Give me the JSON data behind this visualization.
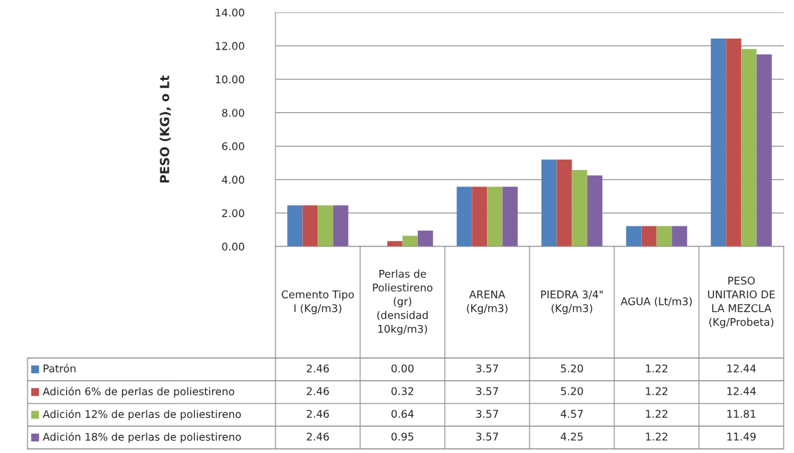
{
  "chart_data": {
    "type": "bar",
    "ylabel": "PESO (KG), o Lt",
    "categories": [
      "Cemento Tipo I (Kg/m3)",
      "Perlas de Poliestireno (gr) (densidad 10kg/m3)",
      "ARENA (Kg/m3)",
      "PIEDRA 3/4\" (Kg/m3)",
      "AGUA (Lt/m3)",
      "PESO UNITARIO DE LA MEZCLA (Kg/Probeta)"
    ],
    "series": [
      {
        "name": "Patrón",
        "color": "#4f81bd",
        "values": [
          2.46,
          0.0,
          3.57,
          5.2,
          1.22,
          12.44
        ],
        "value_labels": [
          "2.46",
          "0.00",
          "3.57",
          "5.20",
          "1.22",
          "12.44"
        ]
      },
      {
        "name": "Adición 6% de perlas de poliestireno",
        "color": "#c0504d",
        "values": [
          2.46,
          0.32,
          3.57,
          5.2,
          1.22,
          12.44
        ],
        "value_labels": [
          "2.46",
          "0.32",
          "3.57",
          "5.20",
          "1.22",
          "12.44"
        ]
      },
      {
        "name": "Adición 12% de perlas de poliestireno",
        "color": "#9bbb59",
        "values": [
          2.46,
          0.64,
          3.57,
          4.57,
          1.22,
          11.81
        ],
        "value_labels": [
          "2.46",
          "0.64",
          "3.57",
          "4.57",
          "1.22",
          "11.81"
        ]
      },
      {
        "name": "Adición 18% de perlas de poliestireno",
        "color": "#8064a2",
        "values": [
          2.46,
          0.95,
          3.57,
          4.25,
          1.22,
          11.49
        ],
        "value_labels": [
          "2.46",
          "0.95",
          "3.57",
          "4.25",
          "1.22",
          "11.49"
        ]
      }
    ],
    "ylim": [
      0,
      14
    ],
    "yticks": [
      {
        "value": 0,
        "label": "0.00"
      },
      {
        "value": 2,
        "label": "2.00"
      },
      {
        "value": 4,
        "label": "4.00"
      },
      {
        "value": 6,
        "label": "6.00"
      },
      {
        "value": 8,
        "label": "8.00"
      },
      {
        "value": 10,
        "label": "10.00"
      },
      {
        "value": 12,
        "label": "12.00"
      },
      {
        "value": 14,
        "label": "14.00"
      }
    ],
    "grid": "y",
    "legend": "bottom"
  }
}
